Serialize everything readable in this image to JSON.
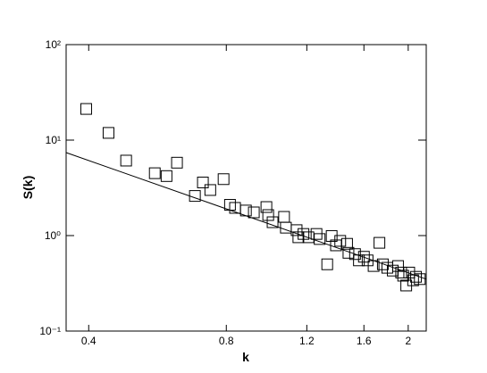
{
  "chart_data": {
    "type": "scatter",
    "log_x": true,
    "log_y": true,
    "x_label": "k",
    "y_label": "S(k)",
    "xlim": [
      0.357,
      2.19
    ],
    "ylim": [
      0.1,
      100
    ],
    "xticks": [
      0.4,
      0.8,
      1.2,
      1.6,
      2
    ],
    "yticks": [
      {
        "value": 0.1,
        "label": "10⁻¹"
      },
      {
        "value": 1,
        "label": "10⁰"
      },
      {
        "value": 10,
        "label": "10¹"
      },
      {
        "value": 100,
        "label": "10²"
      }
    ],
    "series": [
      {
        "name": "data",
        "kind": "scatter",
        "color": "#000000",
        "x": [
          0.395,
          0.442,
          0.483,
          0.558,
          0.592,
          0.624,
          0.683,
          0.711,
          0.738,
          0.789,
          0.815,
          0.836,
          0.883,
          0.919,
          0.979,
          0.988,
          1.01,
          1.07,
          1.08,
          1.14,
          1.15,
          1.18,
          1.21,
          1.26,
          1.28,
          1.33,
          1.36,
          1.39,
          1.42,
          1.47,
          1.48,
          1.53,
          1.56,
          1.6,
          1.63,
          1.68,
          1.73,
          1.76,
          1.8,
          1.85,
          1.9,
          1.93,
          1.95,
          1.98,
          2.01,
          2.05,
          2.08,
          2.12
        ],
        "values": [
          21.2,
          11.9,
          6.1,
          4.5,
          4.2,
          5.8,
          2.6,
          3.6,
          3.0,
          3.9,
          2.1,
          1.95,
          1.83,
          1.75,
          1.99,
          1.64,
          1.38,
          1.57,
          1.21,
          1.14,
          0.96,
          1.04,
          0.96,
          1.04,
          0.92,
          0.5,
          0.99,
          0.79,
          0.88,
          0.82,
          0.66,
          0.64,
          0.55,
          0.6,
          0.55,
          0.48,
          0.84,
          0.5,
          0.46,
          0.43,
          0.48,
          0.41,
          0.38,
          0.3,
          0.41,
          0.34,
          0.37,
          0.35
        ]
      },
      {
        "name": "fit",
        "kind": "line",
        "color": "#000000",
        "x": [
          0.357,
          2.19
        ],
        "values": [
          7.4,
          0.35
        ]
      }
    ]
  }
}
